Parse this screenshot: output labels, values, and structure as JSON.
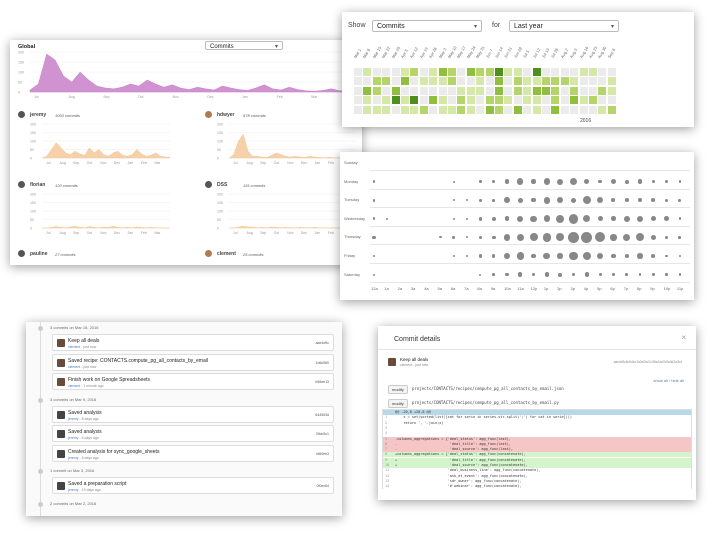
{
  "global_panel": {
    "title": "Global",
    "select_value": "Commits",
    "months": [
      "Jul",
      "Aug",
      "Sep",
      "Oct",
      "Nov",
      "Dec",
      "Jan",
      "Feb",
      "Mar"
    ],
    "global_axis": [
      "200",
      "150",
      "100",
      "50",
      "0"
    ],
    "user_axis": [
      "200",
      "150",
      "100",
      "50",
      "0"
    ],
    "users": [
      {
        "name": "jeremy",
        "commits": "1003 commits"
      },
      {
        "name": "hdwyer",
        "commits": "678 commits"
      },
      {
        "name": "florian",
        "commits": "120 commits"
      },
      {
        "name": "DSS",
        "commits": "115 commits"
      },
      {
        "name": "pauline",
        "commits": "27 commits"
      },
      {
        "name": "clement",
        "commits": "25 commits"
      }
    ],
    "colors": {
      "global": "#c97fc9",
      "user": "#f5c89a"
    }
  },
  "heatmap_panel": {
    "show_label": "Show",
    "show_value": "Commits",
    "for_label": "for",
    "period_value": "Last year",
    "year_label": "2016",
    "week_labels": [
      "Mar 1",
      "Mar 8",
      "Mar 15",
      "Mar 22",
      "Mar 29",
      "Apr 5",
      "Apr 12",
      "Apr 19",
      "Apr 26",
      "May 3",
      "May 10",
      "May 17",
      "May 24",
      "May 31",
      "Jun 7",
      "Jun 14",
      "Jun 21",
      "Jun 28",
      "Jul 5",
      "Jul 12",
      "Jul 19",
      "Jul 26",
      "Aug 2",
      "Aug 9",
      "Aug 16",
      "Aug 23",
      "Aug 30",
      "Sep 6",
      "Sep 13",
      "Sep 20",
      "Sep 27",
      "Oct 4",
      "Oct 11",
      "Oct 18",
      "Oct 25",
      "Nov 1",
      "Nov 8",
      "Nov 15",
      "Nov 22",
      "Nov 29",
      "Dec 6",
      "Dec 13",
      "Dec 20",
      "Dec 27",
      "Jan 3",
      "Jan 10",
      "Jan 17",
      "Jan 24",
      "Jan 31",
      "Feb 7",
      "Feb 14",
      "Feb 21",
      "Feb 28"
    ],
    "colors": {
      "empty": "#ebebeb",
      "l1": "#d6e8a8",
      "l2": "#b5d56a",
      "l3": "#8fbf3c",
      "l4": "#4f8f1e"
    }
  },
  "punchcard_panel": {
    "days": [
      "Sunday",
      "Monday",
      "Tuesday",
      "Wednesday",
      "Thursday",
      "Friday",
      "Saturday"
    ],
    "hours": [
      "12a",
      "1a",
      "2a",
      "3a",
      "4a",
      "5a",
      "6a",
      "7a",
      "8a",
      "9a",
      "10a",
      "11a",
      "12p",
      "1p",
      "2p",
      "3p",
      "4p",
      "5p",
      "6p",
      "7p",
      "8p",
      "9p",
      "10p",
      "11p"
    ],
    "color": "#888888"
  },
  "commits_panel": {
    "groups": [
      {
        "label": "3 commits on Mar 16, 2016",
        "items": [
          {
            "title": "Keep all deals",
            "author": "clement",
            "time": "- just now",
            "sha": "aae4d9c"
          },
          {
            "title": "Saved recipe: CONTACTS.compute_pg_all_contacts_by_email",
            "author": "clement",
            "time": "- just now",
            "sha": "1d6c550"
          },
          {
            "title": "Finish work on Google Spreadsheets",
            "author": "clement",
            "time": "- 1 minute ago",
            "sha": "b96eb13"
          }
        ]
      },
      {
        "label": "3 commits on Mar 9, 2016",
        "items": [
          {
            "title": "Saved analysis",
            "author": "jeremy",
            "time": "- 8 days ago",
            "sha": "644553d"
          },
          {
            "title": "Saved analysis",
            "author": "jeremy",
            "time": "- 8 days ago",
            "sha": "39cb5c1"
          },
          {
            "title": "Created analysis for sync_google_sheets",
            "author": "jeremy",
            "time": "- 8 days ago",
            "sha": "fd60ee3"
          }
        ]
      },
      {
        "label": "1 commit on Mar 3, 2016",
        "items": [
          {
            "title": "Saved a preparation script",
            "author": "jeremy",
            "time": "- 13 days ago",
            "sha": "0f0ec64"
          }
        ]
      },
      {
        "label": "2 commits on Mar 2, 2016",
        "items": []
      }
    ]
  },
  "details_panel": {
    "title": "Commit details",
    "close": "×",
    "commit_title": "Keep all deals",
    "commit_author": "clement - just now",
    "sha_full": "aae4d9c8c9d1e1b0e2fa7c1f9a24a7b9a3d2c0b4",
    "show_all": "show all / hide all",
    "files": [
      {
        "status": "modify",
        "path": "projects/CONTACTS/recipes/compute_pg_all_contacts_by_email.json"
      },
      {
        "status": "modify",
        "path": "projects/CONTACTS/recipes/compute_pg_all_contacts_by_email.py"
      }
    ],
    "diff_lines": [
      {
        "n": "",
        "text": "@@ -20,8 +20,8 @@",
        "type": "hunk"
      },
      {
        "n": "1",
        "text": "    x = set(sorted(list([cat for serie in series.str.split(';') for cat in serie])))",
        "type": "ctx"
      },
      {
        "n": "2",
        "text": "    return ', '.join(x)",
        "type": "ctx"
      },
      {
        "n": "3",
        "text": "",
        "type": "ctx"
      },
      {
        "n": "4",
        "text": "",
        "type": "ctx"
      },
      {
        "n": "5",
        "text": "-columns_aggregations = {'deal_status': agg_func(last),",
        "type": "del"
      },
      {
        "n": "6",
        "text": "-                         'deal_title': agg_func(last),",
        "type": "del"
      },
      {
        "n": "7",
        "text": "-                         'deal_source': agg_func(last),",
        "type": "del"
      },
      {
        "n": "8",
        "text": "+columns_aggregations = {'deal_status': agg_func(concatenate),",
        "type": "add"
      },
      {
        "n": "9",
        "text": "+                         'deal_title': agg_func(concatenate),",
        "type": "add"
      },
      {
        "n": "10",
        "text": "+                         'deal_source': agg_func(concatenate),",
        "type": "add"
      },
      {
        "n": "11",
        "text": "                         'deal_business_line': agg_func(concatenate),",
        "type": "ctx"
      },
      {
        "n": "12",
        "text": "                         'ask_at_event': agg_func(concatenate),",
        "type": "ctx"
      },
      {
        "n": "13",
        "text": "                         'sdr_owner': agg_func(concatenate),",
        "type": "ctx"
      },
      {
        "n": "14",
        "text": "                         '#'webinar': agg_func(concatenate),",
        "type": "ctx"
      }
    ],
    "colors": {
      "hunk": "#b8d8e8",
      "del": "#f6c6c6",
      "add": "#d4f5cc"
    }
  }
}
